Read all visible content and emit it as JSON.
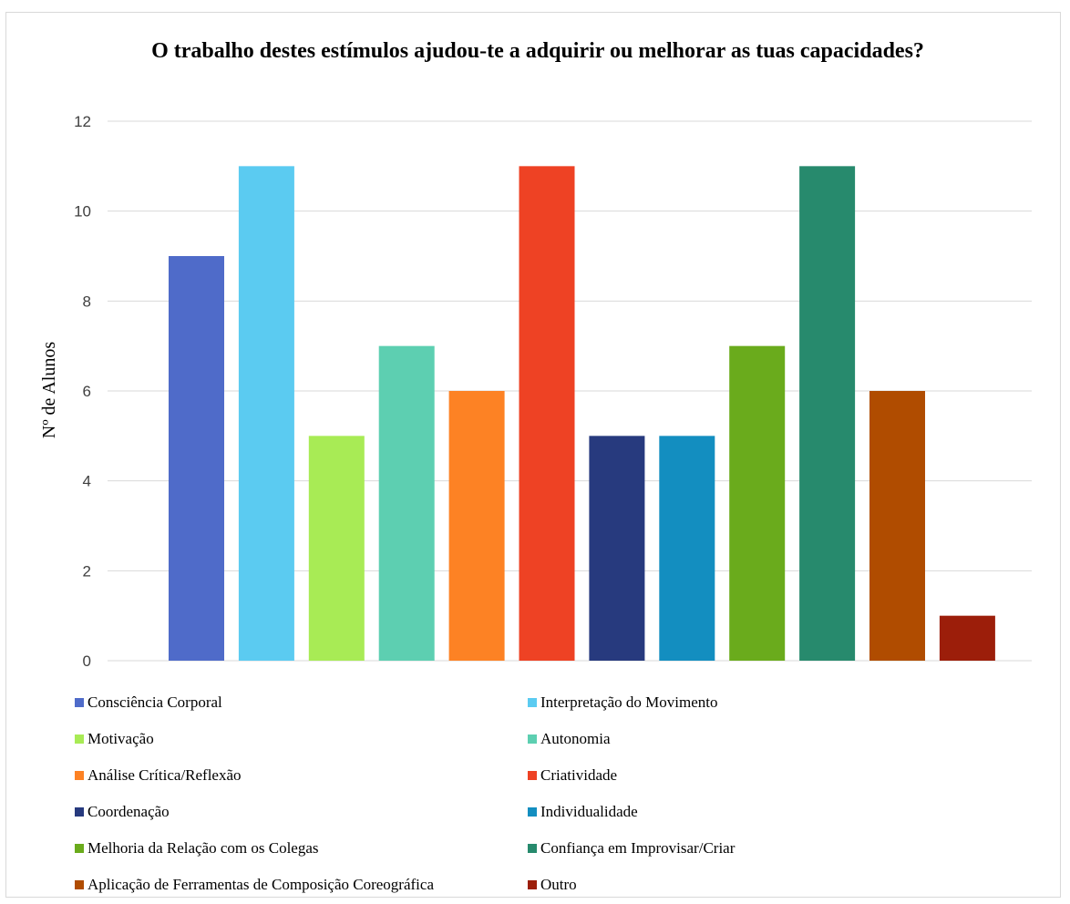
{
  "chart_data": {
    "type": "bar",
    "title": "O trabalho destes estímulos ajudou-te a adquirir ou melhorar as tuas capacidades?",
    "ylabel": "Nº de Alunos",
    "xlabel": "",
    "ylim": [
      0,
      12
    ],
    "yticks": [
      0,
      2,
      4,
      6,
      8,
      10,
      12
    ],
    "grid": "horizontal",
    "legend_position": "bottom",
    "series": [
      {
        "name": "Consciência Corporal",
        "value": 9,
        "color": "#4F6BC9"
      },
      {
        "name": "Interpretação do Movimento",
        "value": 11,
        "color": "#5BCBF1"
      },
      {
        "name": "Motivação",
        "value": 5,
        "color": "#A8EB55"
      },
      {
        "name": "Autonomia",
        "value": 7,
        "color": "#5DCFB1"
      },
      {
        "name": "Análise Crítica/Reflexão",
        "value": 6,
        "color": "#FD8224"
      },
      {
        "name": "Criatividade",
        "value": 11,
        "color": "#EE4224"
      },
      {
        "name": "Coordenação",
        "value": 5,
        "color": "#273A7E"
      },
      {
        "name": "Individualidade",
        "value": 5,
        "color": "#138EC0"
      },
      {
        "name": "Melhoria da Relação com os Colegas",
        "value": 7,
        "color": "#6AAB1C"
      },
      {
        "name": "Confiança em Improvisar/Criar",
        "value": 11,
        "color": "#278A6D"
      },
      {
        "name": "Aplicação de Ferramentas de Composição Coreográfica",
        "value": 6,
        "color": "#B04C00"
      },
      {
        "name": "Outro",
        "value": 1,
        "color": "#9C1E0A"
      }
    ]
  }
}
